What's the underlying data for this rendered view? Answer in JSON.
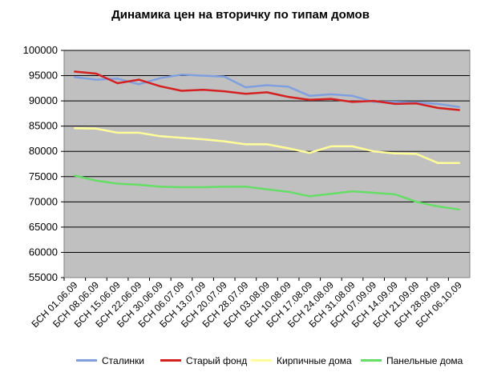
{
  "chart_data": {
    "type": "line",
    "title": "Динамика цен на вторичку по типам домов",
    "xlabel": "",
    "ylabel": "",
    "categories": [
      "БСН 01.06.09",
      "БСН 08.06.09",
      "БСН 15.06.09",
      "БСН 22.06.09",
      "БСН 30.06.09",
      "БСН 06.07.09",
      "БСН 13.07.09",
      "БСН 20.07.09",
      "БСН 28.07.09",
      "БСН 03.08.09",
      "БСН 10.08.09",
      "БСН 17.08.09",
      "БСН 24.08.09",
      "БСН 31.08.09",
      "БСН 07.09.09",
      "БСН 14.09.09",
      "БСН 21.09.09",
      "БСН 28.09.09",
      "БСН 06.10.09"
    ],
    "ylim": [
      55000,
      100000
    ],
    "yticks": [
      55000,
      60000,
      65000,
      70000,
      75000,
      80000,
      85000,
      90000,
      95000,
      100000
    ],
    "grid": true,
    "legend_position": "bottom",
    "plot_background": "#c0c0c0",
    "series": [
      {
        "name": "Сталинки",
        "color": "#7f9fdf",
        "values": [
          94700,
          94200,
          94400,
          93300,
          94500,
          95200,
          95000,
          94800,
          92700,
          93100,
          92800,
          91000,
          91300,
          91000,
          89800,
          89800,
          89700,
          89400,
          88800
        ]
      },
      {
        "name": "Старый фонд",
        "color": "#d42020",
        "values": [
          95800,
          95400,
          93500,
          94200,
          92900,
          92000,
          92200,
          91900,
          91400,
          91700,
          90800,
          90200,
          90400,
          89800,
          90000,
          89400,
          89500,
          88600,
          88200
        ]
      },
      {
        "name": "Кирпичные дома",
        "color": "#ffff99",
        "values": [
          84600,
          84500,
          83700,
          83700,
          83000,
          82700,
          82400,
          82000,
          81400,
          81400,
          80600,
          79700,
          81000,
          81000,
          80000,
          79600,
          79500,
          77700,
          77700
        ]
      },
      {
        "name": "Панельные дома",
        "color": "#66dd66",
        "values": [
          75200,
          74200,
          73600,
          73400,
          73000,
          72900,
          72900,
          73000,
          73000,
          72500,
          72000,
          71100,
          71600,
          72100,
          71800,
          71500,
          70000,
          69100,
          68500
        ]
      }
    ]
  }
}
